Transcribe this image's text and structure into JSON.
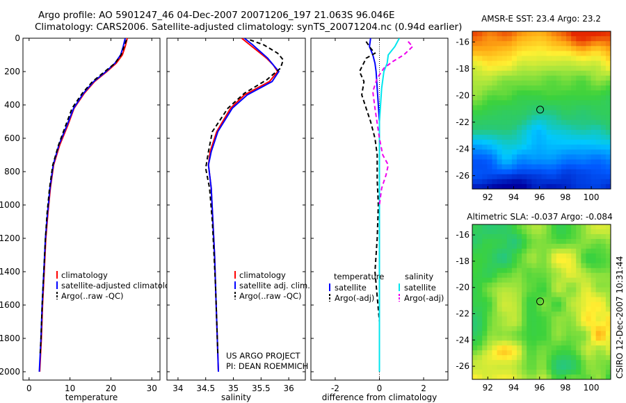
{
  "header": {
    "line1": "Argo profile: AO 5901247_46 04-Dec-2007 20071206_197 21.063S 96.046E",
    "line2": "Climatology: CARS2006. Satellite-adjusted climatology: synTS_20071204.nc (0.94d earlier)"
  },
  "side_text": "CSIRO 12-Dec-2007 10:31:44",
  "credits": [
    "US ARGO PROJECT",
    "PI: DEAN ROEMMICH"
  ],
  "colors": {
    "clim": "#ff0000",
    "sat": "#0000ff",
    "argo": "#000000",
    "sal_sat": "#00e5ee",
    "sal_argo": "#ee00ee"
  },
  "chart_data": [
    {
      "id": "temperature",
      "type": "line",
      "xlabel": "temperature",
      "xlim": [
        -1.5,
        32
      ],
      "ylim": [
        0,
        2050
      ],
      "xticks": [
        0,
        10,
        20,
        30
      ],
      "yticks": [
        0,
        200,
        400,
        600,
        800,
        1000,
        1200,
        1400,
        1600,
        1800,
        2000
      ],
      "y_reversed": true,
      "legend": [
        "climatology",
        "satellite-adjusted climatology",
        "Argo(..raw -QC)"
      ],
      "series": [
        {
          "key": "clim",
          "name": "climatology",
          "color": "#ff0000",
          "dash": "",
          "x": [
            24,
            23.5,
            22.8,
            21.3,
            19,
            16,
            13.5,
            11,
            9.5,
            7.5,
            6,
            5.2,
            4.6,
            4.1,
            3.7,
            3.3,
            3.0,
            2.8,
            2.6
          ],
          "y": [
            0,
            50,
            100,
            150,
            200,
            260,
            330,
            420,
            520,
            640,
            760,
            900,
            1050,
            1200,
            1400,
            1600,
            1800,
            1900,
            2000
          ]
        },
        {
          "key": "sat",
          "name": "satellite-adjusted climatology",
          "color": "#0000ff",
          "dash": "",
          "x": [
            23.5,
            23,
            22.4,
            21,
            18.8,
            15.8,
            13.3,
            10.9,
            9.3,
            7.3,
            5.9,
            5.1,
            4.5,
            4.0,
            3.6,
            3.2,
            2.9,
            2.7,
            2.5
          ],
          "y": [
            0,
            50,
            100,
            150,
            200,
            260,
            330,
            420,
            520,
            640,
            760,
            900,
            1050,
            1200,
            1400,
            1600,
            1800,
            1900,
            2000
          ]
        },
        {
          "key": "argo",
          "name": "Argo(..raw -QC)",
          "color": "#000000",
          "dash": "6,4",
          "x": [
            23.8,
            23.2,
            22.5,
            21.0,
            18.5,
            15.5,
            13.0,
            10.5,
            9.0,
            7.2,
            5.8,
            5.0,
            4.4,
            4.0,
            3.6,
            3.2,
            2.9,
            2.7
          ],
          "y": [
            10,
            50,
            100,
            150,
            200,
            260,
            330,
            420,
            520,
            640,
            760,
            900,
            1050,
            1200,
            1400,
            1600,
            1800,
            1900
          ]
        }
      ]
    },
    {
      "id": "salinity",
      "type": "line",
      "xlabel": "salinity",
      "xlim": [
        33.8,
        36.3
      ],
      "ylim": [
        0,
        2050
      ],
      "xticks": [
        34,
        34.5,
        35,
        35.5,
        36
      ],
      "y_reversed": true,
      "legend": [
        "climatology",
        "satellite adj. clim.",
        "Argo(..raw -QC)"
      ],
      "series": [
        {
          "key": "clim",
          "name": "climatology",
          "color": "#ff0000",
          "dash": "",
          "x": [
            35.15,
            35.3,
            35.6,
            35.72,
            35.8,
            35.65,
            35.2,
            34.95,
            34.7,
            34.58,
            34.55,
            34.6,
            34.63,
            34.66,
            34.68,
            34.7,
            34.72,
            34.73
          ],
          "y": [
            0,
            40,
            120,
            160,
            200,
            260,
            340,
            420,
            560,
            680,
            760,
            900,
            1100,
            1300,
            1500,
            1700,
            1900,
            2000
          ]
        },
        {
          "key": "sat",
          "name": "satellite adj. clim.",
          "color": "#0000ff",
          "dash": "",
          "x": [
            35.2,
            35.35,
            35.62,
            35.72,
            35.82,
            35.7,
            35.25,
            34.98,
            34.72,
            34.6,
            34.55,
            34.6,
            34.63,
            34.66,
            34.68,
            34.7,
            34.72,
            34.73
          ],
          "y": [
            0,
            40,
            120,
            160,
            200,
            260,
            340,
            420,
            560,
            680,
            760,
            900,
            1100,
            1300,
            1500,
            1700,
            1900,
            2000
          ]
        },
        {
          "key": "argo",
          "name": "Argo(..raw -QC)",
          "color": "#000000",
          "dash": "6,4",
          "x": [
            35.3,
            35.55,
            35.8,
            35.9,
            35.85,
            35.6,
            35.2,
            34.9,
            34.62,
            34.55,
            34.5,
            34.57,
            34.62,
            34.65,
            34.68,
            34.7,
            34.72
          ],
          "y": [
            10,
            40,
            90,
            130,
            180,
            250,
            330,
            420,
            560,
            680,
            780,
            900,
            1100,
            1300,
            1500,
            1700,
            1900
          ]
        }
      ]
    },
    {
      "id": "difference",
      "type": "line",
      "xlabel": "difference from climatology",
      "xlim": [
        -3.1,
        3.1
      ],
      "ylim": [
        0,
        2050
      ],
      "xticks": [
        -2,
        0,
        2
      ],
      "y_reversed": true,
      "legend_left": {
        "title": "temperature",
        "items": [
          "satellite",
          "Argo(-adj)"
        ]
      },
      "legend_right": {
        "title": "salinity",
        "items": [
          "satellite",
          "Argo(-adj)"
        ]
      },
      "series": [
        {
          "key": "t_sat",
          "name": "satellite",
          "color": "#0000ff",
          "dash": "",
          "x": [
            -0.4,
            -0.45,
            -0.3,
            -0.2,
            -0.15,
            -0.1,
            -0.05,
            0,
            0,
            0,
            0,
            0,
            0,
            0,
            0
          ],
          "y": [
            0,
            50,
            100,
            150,
            200,
            300,
            400,
            500,
            700,
            900,
            1100,
            1300,
            1500,
            1800,
            2000
          ]
        },
        {
          "key": "t_argo",
          "name": "Argo(-adj)",
          "color": "#000000",
          "dash": "6,4",
          "x": [
            -0.6,
            -0.4,
            -0.2,
            -0.6,
            -0.9,
            -0.7,
            -0.8,
            -0.6,
            -0.4,
            -0.2,
            -0.1,
            -0.1,
            -0.05,
            -0.1,
            -0.2,
            -0.1,
            0
          ],
          "y": [
            20,
            60,
            90,
            120,
            200,
            260,
            340,
            420,
            500,
            600,
            700,
            850,
            1000,
            1200,
            1400,
            1550,
            1700
          ]
        },
        {
          "key": "s_sat",
          "name": "satellite",
          "color": "#00e5ee",
          "dash": "",
          "x": [
            0.9,
            0.7,
            0.4,
            0.35,
            0.2,
            0.1,
            0.05,
            0,
            0,
            0,
            0,
            0,
            0
          ],
          "y": [
            0,
            50,
            100,
            150,
            200,
            300,
            400,
            500,
            800,
            1100,
            1400,
            1700,
            2000
          ]
        },
        {
          "key": "s_argo",
          "name": "Argo(-adj)",
          "color": "#ee00ee",
          "dash": "6,4",
          "x": [
            1.3,
            1.5,
            1.1,
            0.6,
            0.2,
            -0.1,
            -0.3,
            -0.2,
            0,
            0.15,
            0.4,
            0.3,
            0.1,
            0
          ],
          "y": [
            20,
            50,
            100,
            140,
            180,
            240,
            320,
            420,
            600,
            700,
            760,
            820,
            900,
            1000
          ]
        }
      ]
    },
    {
      "id": "sst_map",
      "type": "heatmap",
      "title": "AMSR-E SST: 23.4  Argo: 23.2",
      "xlim": [
        90.8,
        101.5
      ],
      "ylim": [
        -27,
        -15.2
      ],
      "xticks": [
        92,
        94,
        96,
        98,
        100
      ],
      "yticks": [
        -16,
        -18,
        -20,
        -22,
        -24,
        -26
      ],
      "marker": {
        "lon": 96.046,
        "lat": -21.063
      }
    },
    {
      "id": "sla_map",
      "type": "heatmap",
      "title": "Altimetric SLA: -0.037  Argo: -0.084",
      "xlim": [
        90.8,
        101.5
      ],
      "ylim": [
        -27,
        -15.2
      ],
      "xticks": [
        92,
        94,
        96,
        98,
        100
      ],
      "yticks": [
        -16,
        -18,
        -20,
        -22,
        -24,
        -26
      ],
      "marker": {
        "lon": 96.046,
        "lat": -21.063
      }
    }
  ]
}
